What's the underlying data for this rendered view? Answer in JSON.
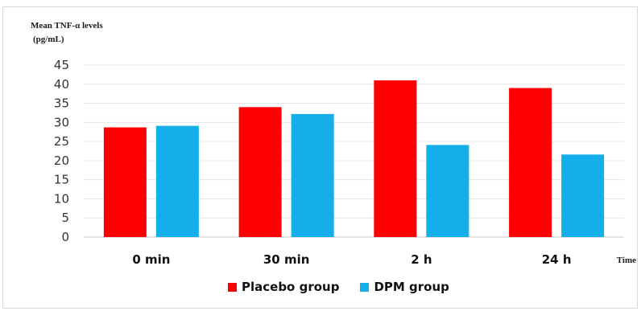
{
  "chart_data": {
    "type": "bar",
    "ylabel_lines": [
      "Mean TNF-α levels",
      "(pg/mL)"
    ],
    "xlabel": "Time",
    "categories": [
      "0 min",
      "30 min",
      "2 h",
      "24 h"
    ],
    "yticks": [
      "0",
      "5",
      "10",
      "15",
      "20",
      "25",
      "30",
      "35",
      "40",
      "45"
    ],
    "ylim": [
      0,
      45
    ],
    "grid": true,
    "legend_position": "bottom",
    "series": [
      {
        "name": "Placebo group",
        "color": "#ff0000",
        "values": [
          28.7,
          34.0,
          41.0,
          39.0
        ]
      },
      {
        "name": "DPM group",
        "color": "#14aeea",
        "values": [
          29.1,
          32.2,
          24.1,
          21.6
        ]
      }
    ]
  }
}
